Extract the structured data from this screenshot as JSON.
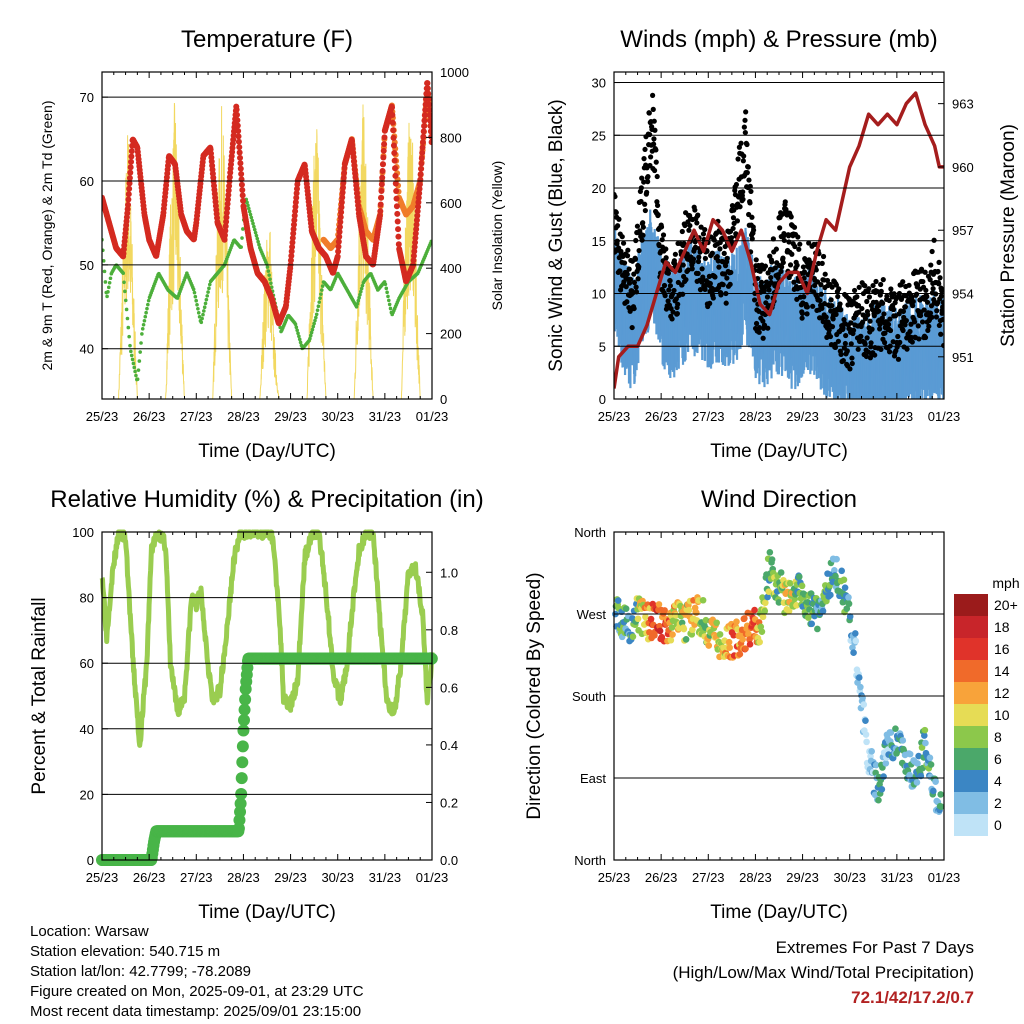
{
  "chart_data": [
    {
      "type": "line",
      "title": "Temperature (F)",
      "xlabel": "Time (Day/UTC)",
      "ylabel": "2m & 9m T (Red, Orange) & 2m Td (Green)",
      "ylabel_right": "Solar Insolation (Yellow)",
      "x_ticks": [
        "25/23",
        "26/23",
        "27/23",
        "28/23",
        "29/23",
        "30/23",
        "31/23",
        "01/23"
      ],
      "xlim": [
        0,
        7
      ],
      "ylim": [
        34,
        73
      ],
      "y_ticks": [
        40,
        50,
        60,
        70
      ],
      "ylim_right": [
        0,
        1000
      ],
      "y_ticks_right": [
        0,
        200,
        400,
        600,
        800,
        1000
      ],
      "grid": true,
      "colors": {
        "t2m": "#d42a20",
        "t9m": "#f07c2a",
        "td": "#4caf3a",
        "solar": "#f2d860"
      },
      "series": [
        {
          "key": "t2m",
          "x": [
            0,
            0.15,
            0.3,
            0.45,
            0.55,
            0.65,
            0.75,
            0.9,
            1.0,
            1.15,
            1.3,
            1.42,
            1.55,
            1.68,
            1.8,
            1.95,
            2.0,
            2.15,
            2.3,
            2.45,
            2.6,
            2.72,
            2.85,
            3.0,
            3.15,
            3.3,
            3.45,
            3.6,
            3.75,
            3.9,
            4.0,
            4.15,
            4.3,
            4.45,
            4.6,
            4.75,
            4.9,
            5.0,
            5.15,
            5.3,
            5.45,
            5.6,
            5.75,
            5.9,
            6.0,
            6.15,
            6.3,
            6.45,
            6.6,
            6.75,
            6.9,
            7.0
          ],
          "y": [
            58,
            55,
            52,
            51,
            57,
            65,
            64,
            56,
            53,
            51,
            56,
            63,
            62,
            56,
            54,
            53,
            55,
            63,
            64,
            55,
            53,
            61,
            69,
            57,
            52,
            49,
            48,
            46,
            43,
            45,
            50,
            60,
            62,
            54,
            52,
            51,
            49,
            51,
            62,
            65,
            56,
            51,
            50,
            56,
            66,
            69,
            52,
            48,
            50,
            60,
            72,
            64
          ]
        },
        {
          "key": "t9m",
          "x": [
            4.7,
            4.85,
            5.0,
            5.15,
            5.3,
            5.45,
            5.6,
            5.75,
            5.9,
            6.0,
            6.15,
            6.3,
            6.45,
            6.6,
            6.75,
            6.9,
            7.0
          ],
          "y": [
            53,
            52,
            53,
            62,
            65,
            57,
            54,
            53,
            56,
            66,
            69,
            58,
            56,
            57,
            60,
            71,
            66
          ]
        },
        {
          "key": "td",
          "x": [
            0,
            0.1,
            0.2,
            0.3,
            0.45,
            0.6,
            0.75,
            0.85,
            1.0,
            1.2,
            1.4,
            1.6,
            1.8,
            1.95,
            2.1,
            2.3,
            2.45,
            2.6,
            2.8,
            2.95,
            3.05,
            3.2,
            3.35,
            3.5,
            3.65,
            3.8,
            3.95,
            4.1,
            4.25,
            4.4,
            4.55,
            4.7,
            4.85,
            5.0,
            5.2,
            5.4,
            5.55,
            5.7,
            5.85,
            6.0,
            6.15,
            6.3,
            6.5,
            6.7,
            6.85,
            7.0
          ],
          "y": [
            53,
            46,
            49,
            50,
            49,
            40,
            36,
            42,
            46,
            49,
            47,
            46,
            49,
            47,
            43,
            48,
            49,
            50,
            53,
            52,
            58,
            55,
            52,
            50,
            46,
            42,
            44,
            43,
            40,
            41,
            44,
            48,
            47,
            49,
            47,
            45,
            48,
            49,
            47,
            48,
            44,
            46,
            48,
            49,
            51,
            53
          ]
        },
        {
          "key": "solar",
          "x": [
            0,
            0.35,
            0.45,
            0.55,
            0.65,
            0.75,
            1.35,
            1.45,
            1.55,
            1.65,
            1.75,
            2.35,
            2.45,
            2.55,
            2.65,
            2.75,
            3.35,
            3.45,
            3.55,
            3.65,
            3.75,
            4.35,
            4.45,
            4.55,
            4.65,
            4.75,
            5.35,
            5.45,
            5.55,
            5.65,
            5.75,
            6.35,
            6.45,
            6.55,
            6.65,
            6.75,
            7.0
          ],
          "y": [
            0,
            0,
            500,
            880,
            450,
            0,
            0,
            600,
            960,
            500,
            0,
            0,
            650,
            940,
            520,
            0,
            0,
            400,
            620,
            200,
            0,
            0,
            600,
            920,
            480,
            0,
            0,
            620,
            950,
            500,
            0,
            0,
            680,
            960,
            500,
            0,
            0
          ]
        }
      ]
    },
    {
      "type": "scatter",
      "title": "Winds (mph) & Pressure (mb)",
      "xlabel": "Time (Day/UTC)",
      "ylabel": "Sonic Wind & Gust (Blue, Black)",
      "ylabel_right": "Station Pressure (Maroon)",
      "x_ticks": [
        "25/23",
        "26/23",
        "27/23",
        "28/23",
        "29/23",
        "30/23",
        "31/23",
        "01/23"
      ],
      "xlim": [
        0,
        7
      ],
      "ylim": [
        0,
        31
      ],
      "y_ticks": [
        0,
        5,
        10,
        15,
        20,
        25,
        30
      ],
      "ylim_right": [
        949,
        964.5
      ],
      "y_ticks_right": [
        951,
        954,
        957,
        960,
        963
      ],
      "grid": true,
      "colors": {
        "wind": "#5a9bd4",
        "gust": "#000000",
        "pressure": "#a51d1d"
      },
      "series": [
        {
          "key": "wind",
          "x": [
            0,
            0.2,
            0.4,
            0.6,
            0.8,
            1.0,
            1.2,
            1.4,
            1.6,
            1.8,
            2.0,
            2.2,
            2.4,
            2.6,
            2.8,
            3.0,
            3.2,
            3.4,
            3.6,
            3.8,
            4.0,
            4.2,
            4.4,
            4.6,
            4.8,
            5.0,
            5.2,
            5.4,
            5.6,
            5.8,
            6.0,
            6.2,
            6.4,
            6.6,
            6.8,
            7.0
          ],
          "y": [
            12,
            8,
            6,
            10,
            13,
            9,
            7,
            8,
            10,
            9,
            8,
            9,
            8,
            9,
            11,
            7,
            6,
            8,
            7,
            6,
            7,
            8,
            6,
            5,
            4,
            2,
            3,
            3,
            4,
            4,
            3,
            4,
            5,
            4,
            5,
            4
          ]
        },
        {
          "key": "gust",
          "x": [
            0,
            0.2,
            0.4,
            0.6,
            0.8,
            1.0,
            1.2,
            1.4,
            1.6,
            1.8,
            2.0,
            2.2,
            2.4,
            2.6,
            2.8,
            3.0,
            3.2,
            3.4,
            3.6,
            3.8,
            4.0,
            4.2,
            4.4,
            4.6,
            4.8,
            5.0,
            5.2,
            5.4,
            5.6,
            5.8,
            6.0,
            6.2,
            6.4,
            6.6,
            6.8,
            7.0
          ],
          "y": [
            17,
            12,
            10,
            18,
            27,
            13,
            10,
            12,
            16,
            14,
            12,
            14,
            12,
            19,
            24,
            10,
            9,
            12,
            16,
            14,
            10,
            12,
            11,
            8,
            7,
            6,
            8,
            7,
            8,
            8,
            7,
            8,
            9,
            9,
            12,
            7
          ]
        },
        {
          "key": "pressure",
          "x": [
            0,
            0.1,
            0.3,
            0.5,
            0.7,
            0.9,
            1.1,
            1.3,
            1.5,
            1.7,
            1.9,
            2.1,
            2.3,
            2.5,
            2.7,
            2.9,
            3.1,
            3.3,
            3.5,
            3.7,
            3.9,
            4.1,
            4.3,
            4.5,
            4.7,
            4.9,
            5.0,
            5.2,
            5.4,
            5.6,
            5.8,
            6.0,
            6.2,
            6.4,
            6.6,
            6.8,
            6.9,
            7.0
          ],
          "y": [
            949.5,
            951,
            951.5,
            951.5,
            952.5,
            954,
            955.5,
            955,
            956,
            957,
            956,
            957.5,
            957,
            956,
            957,
            955.5,
            953.5,
            953,
            954.5,
            955,
            955,
            954,
            956,
            957.5,
            957,
            959,
            960,
            961,
            962.5,
            962,
            962.5,
            962,
            963,
            963.5,
            962,
            961,
            960,
            960
          ]
        }
      ]
    },
    {
      "type": "line",
      "title": "Relative Humidity (%) & Precipitation (in)",
      "xlabel": "Time (Day/UTC)",
      "ylabel": "Percent & Total Rainfall",
      "x_ticks": [
        "25/23",
        "26/23",
        "27/23",
        "28/23",
        "29/23",
        "30/23",
        "31/23",
        "01/23"
      ],
      "xlim": [
        0,
        7
      ],
      "ylim": [
        0,
        100
      ],
      "y_ticks": [
        0,
        20,
        40,
        60,
        80,
        100
      ],
      "ylim_right": [
        0,
        1.14
      ],
      "y_ticks_right": [
        "0.0",
        "0.2",
        "0.4",
        "0.6",
        "0.8",
        "1.0"
      ],
      "grid": true,
      "colors": {
        "rh": "#9acd50",
        "precip": "#48b548"
      },
      "series": [
        {
          "key": "rh",
          "x": [
            0,
            0.1,
            0.2,
            0.35,
            0.5,
            0.65,
            0.8,
            0.95,
            1.05,
            1.2,
            1.35,
            1.45,
            1.6,
            1.75,
            1.9,
            2.0,
            2.1,
            2.25,
            2.35,
            2.5,
            2.65,
            2.8,
            2.95,
            3.05,
            3.2,
            3.4,
            3.6,
            3.75,
            3.85,
            4.0,
            4.15,
            4.3,
            4.45,
            4.6,
            4.75,
            4.9,
            5.05,
            5.2,
            5.35,
            5.45,
            5.6,
            5.75,
            5.9,
            6.05,
            6.2,
            6.35,
            6.5,
            6.65,
            6.8,
            6.9,
            7.0
          ],
          "y": [
            88,
            68,
            85,
            100,
            98,
            62,
            35,
            60,
            95,
            100,
            96,
            60,
            45,
            50,
            80,
            78,
            82,
            60,
            48,
            52,
            70,
            92,
            100,
            100,
            100,
            100,
            100,
            78,
            50,
            47,
            55,
            92,
            100,
            100,
            82,
            58,
            48,
            60,
            82,
            94,
            100,
            100,
            72,
            48,
            45,
            60,
            88,
            90,
            75,
            48,
            62
          ]
        },
        {
          "key": "precip",
          "x": [
            0,
            1.05,
            1.1,
            1.15,
            2.8,
            2.9,
            2.95,
            3.0,
            3.05,
            3.1,
            7.0
          ],
          "y": [
            0,
            0,
            0.06,
            0.1,
            0.1,
            0.1,
            0.22,
            0.45,
            0.6,
            0.7,
            0.7
          ]
        }
      ]
    },
    {
      "type": "scatter",
      "title": "Wind Direction",
      "xlabel": "Time (Day/UTC)",
      "ylabel": "Direction (Colored By Speed)",
      "x_ticks": [
        "25/23",
        "26/23",
        "27/23",
        "28/23",
        "29/23",
        "30/23",
        "31/23",
        "01/23"
      ],
      "xlim": [
        0,
        7
      ],
      "ylim": [
        0,
        360
      ],
      "y_ticks": [
        "North",
        "East",
        "South",
        "West",
        "North"
      ],
      "colorbar_title": "mph",
      "colorbar_labels": [
        "20+",
        "18",
        "16",
        "14",
        "12",
        "10",
        "8",
        "6",
        "4",
        "2",
        "0"
      ],
      "colorbar_colors": [
        "#9b1b1b",
        "#c8252a",
        "#e0332a",
        "#f06a2a",
        "#f8a33a",
        "#e6dc55",
        "#8cc84b",
        "#4ba86a",
        "#3b86c4",
        "#80bde4",
        "#bfe3f7"
      ],
      "grid": true,
      "series": [
        {
          "name": "",
          "x": [
            0.1,
            0.3,
            0.5,
            0.7,
            0.9,
            1.1,
            1.3,
            1.5,
            1.7,
            1.9,
            2.1,
            2.3,
            2.5,
            2.7,
            2.9,
            3.1,
            3.3,
            3.5,
            3.7,
            3.9,
            4.1,
            4.3,
            4.5,
            4.7,
            4.9,
            5.1,
            5.2,
            5.4,
            5.6,
            5.8,
            6.0,
            6.2,
            6.4,
            6.6,
            6.8,
            6.9
          ],
          "y": [
            270,
            255,
            270,
            260,
            265,
            255,
            265,
            260,
            270,
            265,
            245,
            240,
            240,
            245,
            255,
            258,
            320,
            300,
            285,
            295,
            280,
            270,
            300,
            320,
            290,
            240,
            190,
            110,
            80,
            120,
            130,
            110,
            90,
            130,
            80,
            60
          ],
          "speed": [
            6,
            4,
            8,
            12,
            16,
            14,
            10,
            8,
            12,
            8,
            10,
            10,
            14,
            12,
            16,
            10,
            6,
            8,
            10,
            6,
            8,
            4,
            6,
            4,
            6,
            2,
            2,
            2,
            4,
            2,
            4,
            4,
            4,
            6,
            4,
            4
          ]
        }
      ]
    }
  ],
  "info": {
    "location": "Location: Warsaw",
    "elevation": "Station elevation: 540.715 m",
    "latlon": "Station lat/lon: 42.7799; -78.2089",
    "created": "Figure created on Mon, 2025-09-01, at 23:29 UTC",
    "recent": "Most recent data timestamp: 2025/09/01 23:15:00"
  },
  "extremes": {
    "line1": "Extremes For Past 7 Days",
    "line2": "(High/Low/Max Wind/Total Precipitation)",
    "values": "72.1/42/17.2/0.7"
  }
}
